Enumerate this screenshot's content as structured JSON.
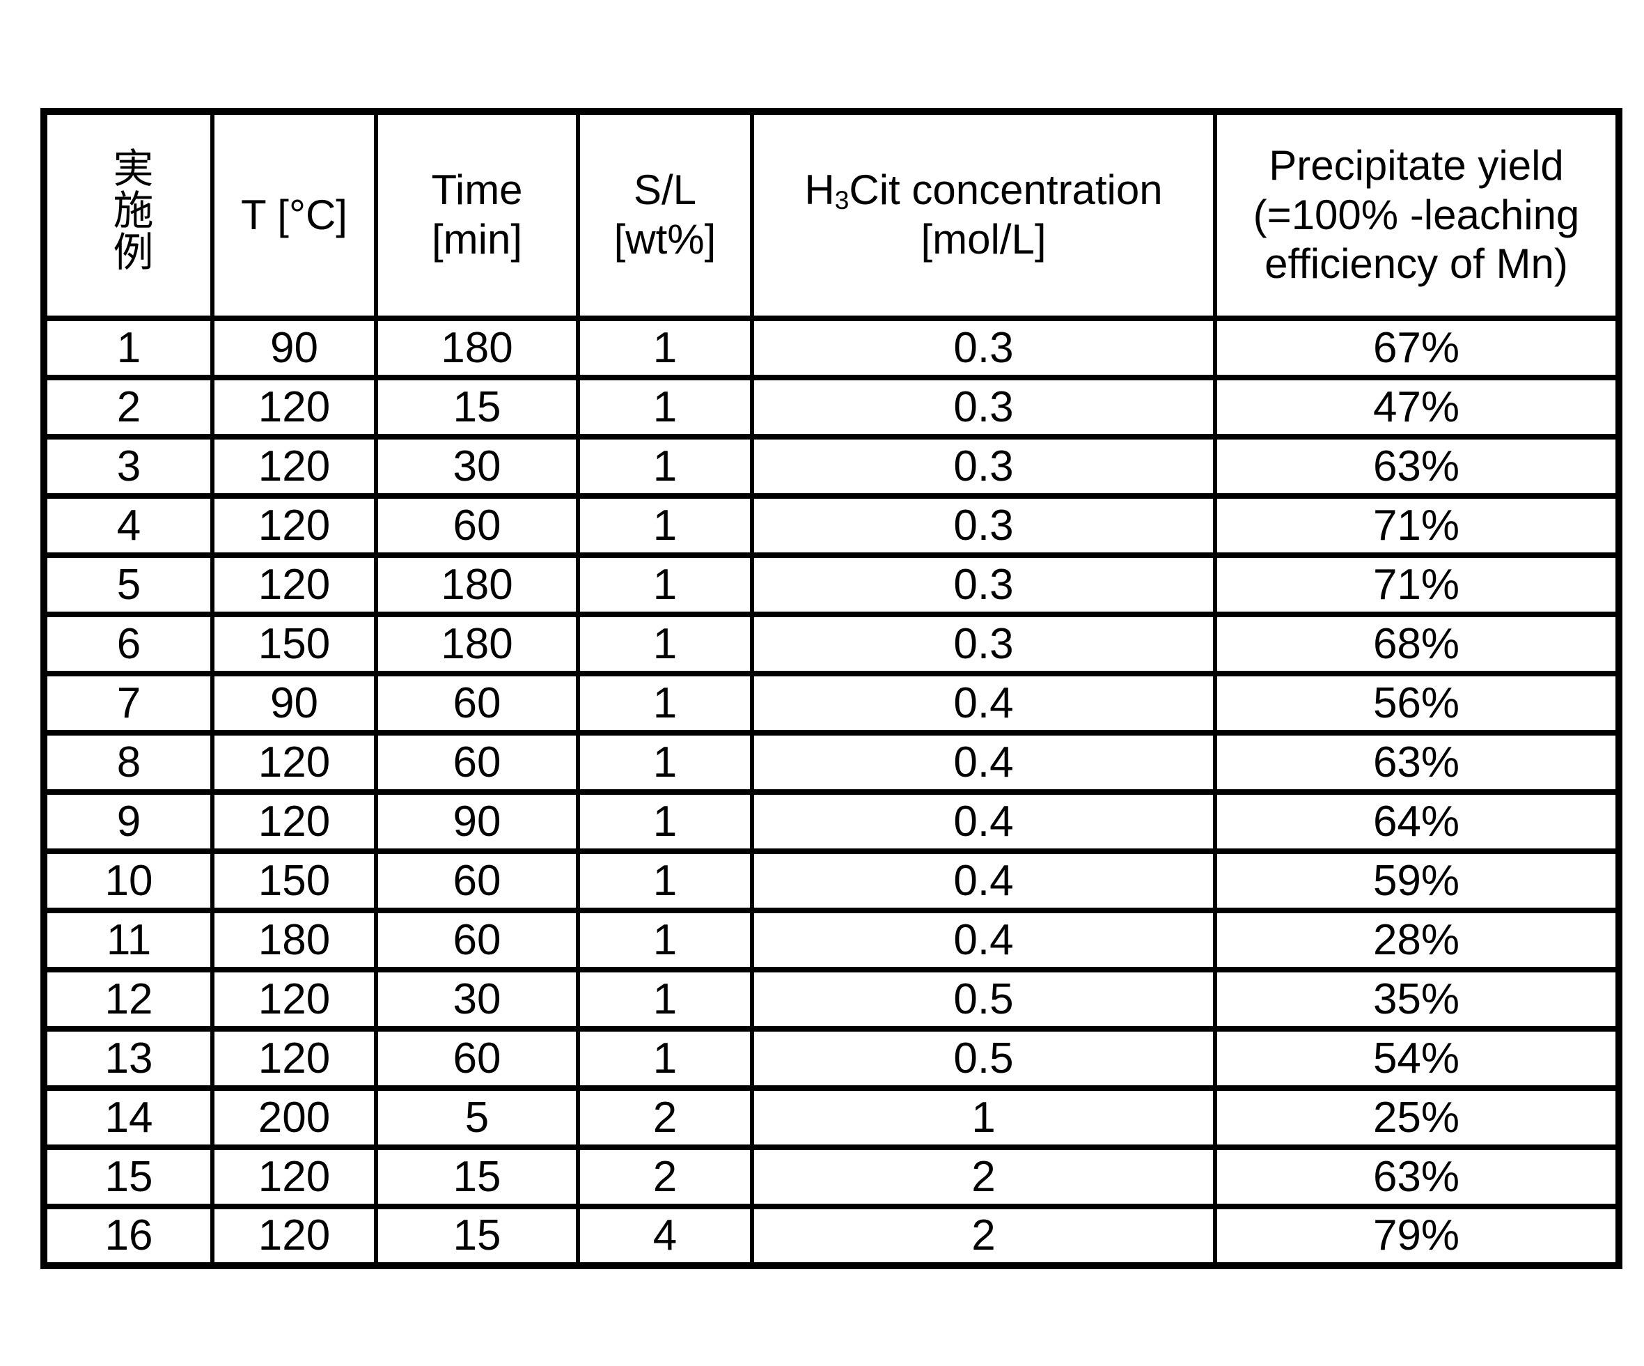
{
  "colors": {
    "background": "#ffffff",
    "border": "#000000",
    "text": "#000000"
  },
  "table": {
    "headers": {
      "example": "実施例",
      "temperature": "T [°C]",
      "time": [
        "Time",
        "[min]"
      ],
      "sl": [
        "S/L",
        "[wt%]"
      ],
      "h3cit": {
        "pre": "H",
        "sub": "3",
        "post": "Cit concentration",
        "unit": "[mol/L]"
      },
      "yield": [
        "Precipitate yield",
        "(=100% -leaching",
        "efficiency of Mn)"
      ]
    },
    "rows": [
      {
        "example": "1",
        "t": "90",
        "time": "180",
        "sl": "1",
        "h3cit": "0.3",
        "yield": "67%"
      },
      {
        "example": "2",
        "t": "120",
        "time": "15",
        "sl": "1",
        "h3cit": "0.3",
        "yield": "47%"
      },
      {
        "example": "3",
        "t": "120",
        "time": "30",
        "sl": "1",
        "h3cit": "0.3",
        "yield": "63%"
      },
      {
        "example": "4",
        "t": "120",
        "time": "60",
        "sl": "1",
        "h3cit": "0.3",
        "yield": "71%"
      },
      {
        "example": "5",
        "t": "120",
        "time": "180",
        "sl": "1",
        "h3cit": "0.3",
        "yield": "71%"
      },
      {
        "example": "6",
        "t": "150",
        "time": "180",
        "sl": "1",
        "h3cit": "0.3",
        "yield": "68%"
      },
      {
        "example": "7",
        "t": "90",
        "time": "60",
        "sl": "1",
        "h3cit": "0.4",
        "yield": "56%"
      },
      {
        "example": "8",
        "t": "120",
        "time": "60",
        "sl": "1",
        "h3cit": "0.4",
        "yield": "63%"
      },
      {
        "example": "9",
        "t": "120",
        "time": "90",
        "sl": "1",
        "h3cit": "0.4",
        "yield": "64%"
      },
      {
        "example": "10",
        "t": "150",
        "time": "60",
        "sl": "1",
        "h3cit": "0.4",
        "yield": "59%"
      },
      {
        "example": "11",
        "t": "180",
        "time": "60",
        "sl": "1",
        "h3cit": "0.4",
        "yield": "28%"
      },
      {
        "example": "12",
        "t": "120",
        "time": "30",
        "sl": "1",
        "h3cit": "0.5",
        "yield": "35%"
      },
      {
        "example": "13",
        "t": "120",
        "time": "60",
        "sl": "1",
        "h3cit": "0.5",
        "yield": "54%"
      },
      {
        "example": "14",
        "t": "200",
        "time": "5",
        "sl": "2",
        "h3cit": "1",
        "yield": "25%"
      },
      {
        "example": "15",
        "t": "120",
        "time": "15",
        "sl": "2",
        "h3cit": "2",
        "yield": "63%"
      },
      {
        "example": "16",
        "t": "120",
        "time": "15",
        "sl": "4",
        "h3cit": "2",
        "yield": "79%"
      }
    ]
  }
}
